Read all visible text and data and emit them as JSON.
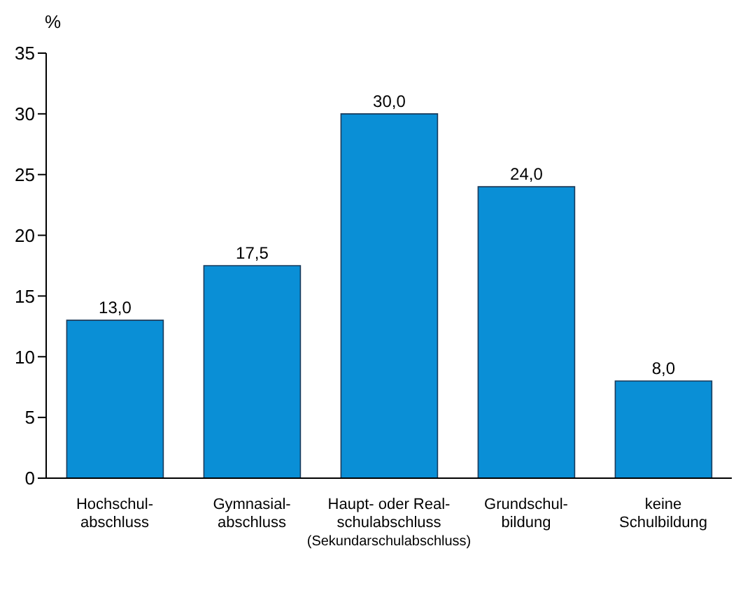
{
  "chart_data": {
    "type": "bar",
    "ylabel": "%",
    "categories": [
      "Hochschul-\nabschluss",
      "Gymnasial-\nabschluss",
      "Haupt- oder Real-\nschulabschluss\n(Sekundarschulabschluss)",
      "Grundschul-\nbildung",
      "keine\nSchulbildung"
    ],
    "values": [
      13.0,
      17.5,
      30.0,
      24.0,
      8.0
    ],
    "value_labels": [
      "13,0",
      "17,5",
      "30,0",
      "24,0",
      "8,0"
    ],
    "color": "#0a8fd6",
    "ylim": [
      0,
      35
    ],
    "yticks": [
      0,
      5,
      10,
      15,
      20,
      25,
      30,
      35
    ],
    "grid": false,
    "legend": false
  }
}
